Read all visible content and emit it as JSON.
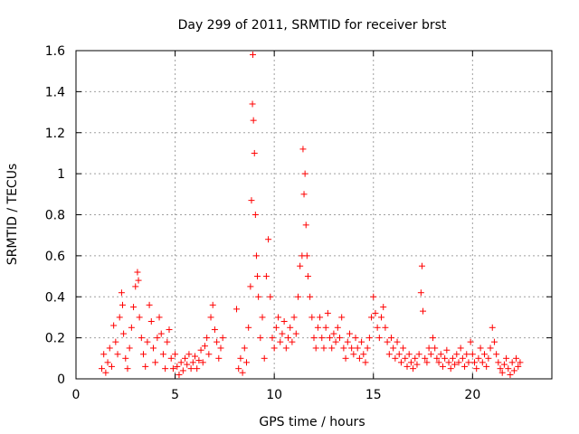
{
  "chart_data": {
    "type": "scatter",
    "title": "Day 299 of 2011, SRMTID for receiver brst",
    "xlabel": "GPS time / hours",
    "ylabel": "SRMTID / TECUs",
    "xlim": [
      0,
      24
    ],
    "ylim": [
      0,
      1.6
    ],
    "xticks": [
      0,
      5,
      10,
      15,
      20
    ],
    "xtick_labels": [
      "0",
      "5",
      "10",
      "15",
      "20"
    ],
    "yticks": [
      0,
      0.2,
      0.4,
      0.6,
      0.8,
      1.0,
      1.2,
      1.4,
      1.6
    ],
    "ytick_labels": [
      "0",
      "0.2",
      "0.4",
      "0.6",
      "0.8",
      "1",
      "1.2",
      "1.4",
      "1.6"
    ],
    "grid": true,
    "marker": "+",
    "color": "#ff0000",
    "series": [
      {
        "name": "SRMTID",
        "points": [
          [
            1.3,
            0.05
          ],
          [
            1.4,
            0.12
          ],
          [
            1.5,
            0.03
          ],
          [
            1.6,
            0.08
          ],
          [
            1.7,
            0.15
          ],
          [
            1.8,
            0.06
          ],
          [
            1.9,
            0.26
          ],
          [
            2.0,
            0.18
          ],
          [
            2.1,
            0.12
          ],
          [
            2.2,
            0.3
          ],
          [
            2.3,
            0.42
          ],
          [
            2.35,
            0.36
          ],
          [
            2.4,
            0.22
          ],
          [
            2.5,
            0.1
          ],
          [
            2.6,
            0.05
          ],
          [
            2.7,
            0.15
          ],
          [
            2.8,
            0.25
          ],
          [
            2.9,
            0.35
          ],
          [
            3.0,
            0.45
          ],
          [
            3.1,
            0.52
          ],
          [
            3.15,
            0.48
          ],
          [
            3.2,
            0.3
          ],
          [
            3.3,
            0.2
          ],
          [
            3.4,
            0.12
          ],
          [
            3.5,
            0.06
          ],
          [
            3.6,
            0.18
          ],
          [
            3.7,
            0.36
          ],
          [
            3.8,
            0.28
          ],
          [
            3.9,
            0.15
          ],
          [
            4.0,
            0.08
          ],
          [
            4.1,
            0.2
          ],
          [
            4.2,
            0.3
          ],
          [
            4.3,
            0.22
          ],
          [
            4.4,
            0.12
          ],
          [
            4.5,
            0.05
          ],
          [
            4.6,
            0.18
          ],
          [
            4.7,
            0.24
          ],
          [
            4.8,
            0.1
          ],
          [
            4.9,
            0.05
          ],
          [
            5.0,
            0.12
          ],
          [
            5.1,
            0.06
          ],
          [
            5.2,
            0.02
          ],
          [
            5.3,
            0.08
          ],
          [
            5.4,
            0.04
          ],
          [
            5.5,
            0.1
          ],
          [
            5.6,
            0.07
          ],
          [
            5.7,
            0.12
          ],
          [
            5.8,
            0.05
          ],
          [
            5.9,
            0.08
          ],
          [
            6.0,
            0.11
          ],
          [
            6.1,
            0.05
          ],
          [
            6.2,
            0.09
          ],
          [
            6.3,
            0.14
          ],
          [
            6.4,
            0.08
          ],
          [
            6.5,
            0.16
          ],
          [
            6.6,
            0.2
          ],
          [
            6.7,
            0.12
          ],
          [
            6.8,
            0.3
          ],
          [
            6.9,
            0.36
          ],
          [
            7.0,
            0.24
          ],
          [
            7.1,
            0.18
          ],
          [
            7.2,
            0.1
          ],
          [
            7.3,
            0.15
          ],
          [
            7.4,
            0.2
          ],
          [
            8.1,
            0.34
          ],
          [
            8.2,
            0.05
          ],
          [
            8.3,
            0.1
          ],
          [
            8.4,
            0.03
          ],
          [
            8.5,
            0.15
          ],
          [
            8.6,
            0.08
          ],
          [
            8.7,
            0.25
          ],
          [
            8.8,
            0.45
          ],
          [
            8.85,
            0.87
          ],
          [
            8.9,
            1.34
          ],
          [
            8.92,
            1.58
          ],
          [
            8.95,
            1.26
          ],
          [
            9.0,
            1.1
          ],
          [
            9.05,
            0.8
          ],
          [
            9.1,
            0.6
          ],
          [
            9.15,
            0.5
          ],
          [
            9.2,
            0.4
          ],
          [
            9.3,
            0.2
          ],
          [
            9.4,
            0.3
          ],
          [
            9.5,
            0.1
          ],
          [
            9.6,
            0.5
          ],
          [
            9.7,
            0.68
          ],
          [
            9.8,
            0.4
          ],
          [
            9.9,
            0.2
          ],
          [
            10.0,
            0.15
          ],
          [
            10.1,
            0.25
          ],
          [
            10.2,
            0.3
          ],
          [
            10.3,
            0.18
          ],
          [
            10.4,
            0.22
          ],
          [
            10.5,
            0.28
          ],
          [
            10.6,
            0.15
          ],
          [
            10.7,
            0.2
          ],
          [
            10.8,
            0.25
          ],
          [
            10.9,
            0.18
          ],
          [
            11.0,
            0.3
          ],
          [
            11.1,
            0.22
          ],
          [
            11.2,
            0.4
          ],
          [
            11.3,
            0.55
          ],
          [
            11.4,
            0.6
          ],
          [
            11.45,
            1.12
          ],
          [
            11.5,
            0.9
          ],
          [
            11.55,
            1.0
          ],
          [
            11.6,
            0.75
          ],
          [
            11.65,
            0.6
          ],
          [
            11.7,
            0.5
          ],
          [
            11.8,
            0.4
          ],
          [
            11.9,
            0.3
          ],
          [
            12.0,
            0.2
          ],
          [
            12.1,
            0.15
          ],
          [
            12.2,
            0.25
          ],
          [
            12.3,
            0.3
          ],
          [
            12.4,
            0.2
          ],
          [
            12.5,
            0.15
          ],
          [
            12.6,
            0.25
          ],
          [
            12.7,
            0.32
          ],
          [
            12.8,
            0.2
          ],
          [
            12.9,
            0.15
          ],
          [
            13.0,
            0.22
          ],
          [
            13.1,
            0.18
          ],
          [
            13.2,
            0.25
          ],
          [
            13.3,
            0.2
          ],
          [
            13.4,
            0.3
          ],
          [
            13.5,
            0.15
          ],
          [
            13.6,
            0.1
          ],
          [
            13.7,
            0.18
          ],
          [
            13.8,
            0.22
          ],
          [
            13.9,
            0.15
          ],
          [
            14.0,
            0.12
          ],
          [
            14.1,
            0.2
          ],
          [
            14.2,
            0.15
          ],
          [
            14.3,
            0.1
          ],
          [
            14.4,
            0.18
          ],
          [
            14.5,
            0.12
          ],
          [
            14.6,
            0.08
          ],
          [
            14.7,
            0.15
          ],
          [
            14.8,
            0.2
          ],
          [
            14.9,
            0.3
          ],
          [
            15.0,
            0.4
          ],
          [
            15.1,
            0.32
          ],
          [
            15.2,
            0.25
          ],
          [
            15.3,
            0.2
          ],
          [
            15.4,
            0.3
          ],
          [
            15.5,
            0.35
          ],
          [
            15.6,
            0.25
          ],
          [
            15.7,
            0.18
          ],
          [
            15.8,
            0.12
          ],
          [
            15.9,
            0.2
          ],
          [
            16.0,
            0.15
          ],
          [
            16.1,
            0.1
          ],
          [
            16.2,
            0.18
          ],
          [
            16.3,
            0.12
          ],
          [
            16.4,
            0.08
          ],
          [
            16.5,
            0.15
          ],
          [
            16.6,
            0.1
          ],
          [
            16.7,
            0.06
          ],
          [
            16.8,
            0.12
          ],
          [
            16.9,
            0.08
          ],
          [
            17.0,
            0.05
          ],
          [
            17.1,
            0.1
          ],
          [
            17.2,
            0.07
          ],
          [
            17.3,
            0.12
          ],
          [
            17.4,
            0.42
          ],
          [
            17.45,
            0.55
          ],
          [
            17.5,
            0.33
          ],
          [
            17.6,
            0.1
          ],
          [
            17.7,
            0.08
          ],
          [
            17.8,
            0.15
          ],
          [
            17.9,
            0.12
          ],
          [
            18.0,
            0.2
          ],
          [
            18.1,
            0.15
          ],
          [
            18.2,
            0.1
          ],
          [
            18.3,
            0.08
          ],
          [
            18.4,
            0.12
          ],
          [
            18.5,
            0.06
          ],
          [
            18.6,
            0.1
          ],
          [
            18.7,
            0.14
          ],
          [
            18.8,
            0.08
          ],
          [
            18.9,
            0.05
          ],
          [
            19.0,
            0.1
          ],
          [
            19.1,
            0.07
          ],
          [
            19.2,
            0.12
          ],
          [
            19.3,
            0.08
          ],
          [
            19.4,
            0.15
          ],
          [
            19.5,
            0.1
          ],
          [
            19.6,
            0.06
          ],
          [
            19.7,
            0.12
          ],
          [
            19.8,
            0.08
          ],
          [
            19.9,
            0.18
          ],
          [
            20.0,
            0.12
          ],
          [
            20.1,
            0.08
          ],
          [
            20.2,
            0.05
          ],
          [
            20.3,
            0.1
          ],
          [
            20.4,
            0.15
          ],
          [
            20.5,
            0.08
          ],
          [
            20.6,
            0.12
          ],
          [
            20.7,
            0.06
          ],
          [
            20.8,
            0.1
          ],
          [
            20.9,
            0.15
          ],
          [
            21.0,
            0.25
          ],
          [
            21.1,
            0.18
          ],
          [
            21.2,
            0.12
          ],
          [
            21.3,
            0.08
          ],
          [
            21.4,
            0.05
          ],
          [
            21.5,
            0.03
          ],
          [
            21.6,
            0.07
          ],
          [
            21.7,
            0.1
          ],
          [
            21.8,
            0.05
          ],
          [
            21.9,
            0.02
          ],
          [
            22.0,
            0.08
          ],
          [
            22.1,
            0.04
          ],
          [
            22.2,
            0.1
          ],
          [
            22.3,
            0.06
          ],
          [
            22.4,
            0.08
          ]
        ]
      }
    ]
  }
}
